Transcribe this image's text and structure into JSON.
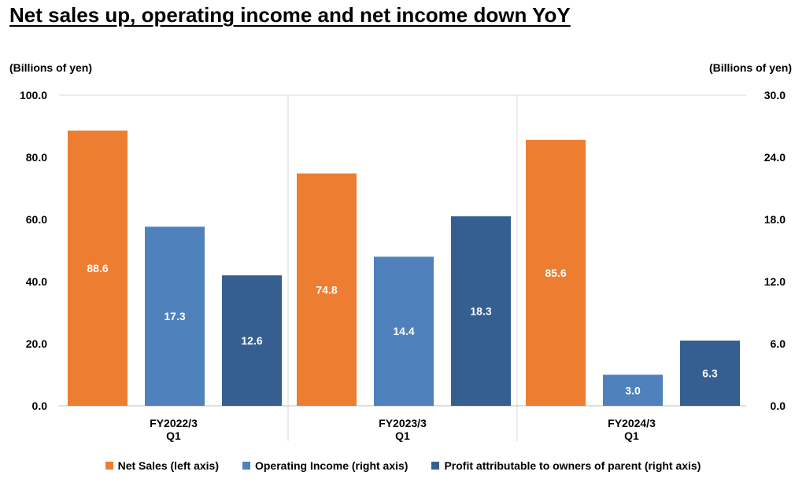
{
  "chart_data": {
    "type": "bar",
    "title": "Net sales up, operating income and net income down YoY",
    "left_axis_label": "(Billions of yen)",
    "right_axis_label": "(Billions of yen)",
    "categories": [
      [
        "FY2022/3",
        "Q1"
      ],
      [
        "FY2023/3",
        "Q1"
      ],
      [
        "FY2024/3",
        "Q1"
      ]
    ],
    "left_ylim": [
      0,
      100
    ],
    "right_ylim": [
      0,
      30
    ],
    "left_ticks": [
      "0.0",
      "20.0",
      "40.0",
      "60.0",
      "80.0",
      "100.0"
    ],
    "right_ticks": [
      "0.0",
      "6.0",
      "12.0",
      "18.0",
      "24.0",
      "30.0"
    ],
    "series": [
      {
        "name": "Net Sales (left axis)",
        "axis": "left",
        "color": "#ED7D31",
        "values": [
          88.6,
          74.8,
          85.6
        ],
        "labels": [
          "88.6",
          "74.8",
          "85.6"
        ]
      },
      {
        "name": "Operating Income (right axis)",
        "axis": "right",
        "color": "#4F81BD",
        "values": [
          17.3,
          14.4,
          3.0
        ],
        "labels": [
          "17.3",
          "14.4",
          "3.0"
        ]
      },
      {
        "name": "Profit attributable to owners of parent (right axis)",
        "axis": "right",
        "color": "#355F91",
        "values": [
          12.6,
          18.3,
          6.3
        ],
        "labels": [
          "12.6",
          "18.3",
          "6.3"
        ]
      }
    ],
    "legend_position": "bottom"
  }
}
